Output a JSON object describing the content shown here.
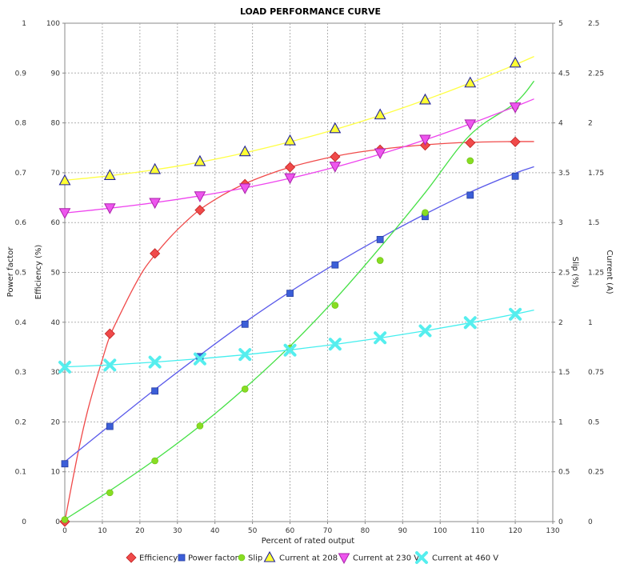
{
  "chart_data": {
    "type": "line",
    "title": "LOAD PERFORMANCE CURVE",
    "xlabel": "Percent of rated output",
    "xlim": [
      0,
      130
    ],
    "x_ticks": [
      0,
      10,
      20,
      30,
      40,
      50,
      60,
      70,
      80,
      90,
      100,
      110,
      120,
      130
    ],
    "grid": true,
    "legend_position": "bottom",
    "axes": {
      "power_factor": {
        "label": "Power factor",
        "side": "left-outer",
        "range": [
          0,
          1
        ],
        "ticks": [
          "0",
          "0.1",
          "0.2",
          "0.3",
          "0.4",
          "0.5",
          "0.6",
          "0.7",
          "0.8",
          "0.9",
          "1"
        ]
      },
      "efficiency": {
        "label": "Efficiency (%)",
        "side": "left-inner",
        "range": [
          0,
          100
        ],
        "ticks": [
          "0",
          "10",
          "20",
          "30",
          "40",
          "50",
          "60",
          "70",
          "80",
          "90",
          "100"
        ]
      },
      "slip": {
        "label": "Slip (%)",
        "side": "right-inner",
        "range": [
          0,
          5
        ],
        "ticks": [
          "0",
          "0.5",
          "1",
          "1.5",
          "2",
          "2.5",
          "3",
          "3.5",
          "4",
          "4.5",
          "5"
        ]
      },
      "current": {
        "label": "Current (A)",
        "side": "right-outer",
        "range": [
          0,
          2.5
        ],
        "ticks": [
          "0",
          "0.25",
          "0.5",
          "0.75",
          "1",
          "1.25",
          "1.5",
          "1.75",
          "2",
          "2.25",
          "2.5"
        ]
      }
    },
    "series": [
      {
        "name": "Efficiency",
        "axis": "efficiency",
        "color": "#f04a4a",
        "marker": "diamond",
        "marker_fill": "#f04a4a",
        "marker_stroke": "#c02020",
        "points": [
          [
            0,
            0
          ],
          [
            12,
            37.7
          ],
          [
            24,
            53.8
          ],
          [
            36,
            62.5
          ],
          [
            48,
            67.7
          ],
          [
            60,
            71.1
          ],
          [
            72,
            73.2
          ],
          [
            84,
            74.6
          ],
          [
            96,
            75.5
          ],
          [
            108,
            76
          ],
          [
            120,
            76.2
          ]
        ],
        "curve": [
          [
            0,
            0
          ],
          [
            2,
            8
          ],
          [
            4,
            15.5
          ],
          [
            6,
            22
          ],
          [
            8,
            27.5
          ],
          [
            10,
            32.5
          ],
          [
            12,
            37.2
          ],
          [
            15,
            42
          ],
          [
            18,
            46.5
          ],
          [
            21,
            50.5
          ],
          [
            24,
            53.5
          ],
          [
            28,
            57
          ],
          [
            32,
            60
          ],
          [
            36,
            62.6
          ],
          [
            42,
            65.5
          ],
          [
            48,
            67.8
          ],
          [
            54,
            69.6
          ],
          [
            60,
            71.1
          ],
          [
            66,
            72.3
          ],
          [
            72,
            73.3
          ],
          [
            78,
            74.1
          ],
          [
            84,
            74.7
          ],
          [
            90,
            75.2
          ],
          [
            96,
            75.6
          ],
          [
            102,
            75.9
          ],
          [
            108,
            76.1
          ],
          [
            114,
            76.2
          ],
          [
            120,
            76.25
          ],
          [
            125,
            76.25
          ]
        ]
      },
      {
        "name": "Power factor",
        "axis": "power_factor",
        "color": "#5a5aea",
        "marker": "square",
        "marker_fill": "#3b5ed8",
        "marker_stroke": "#2a40a0",
        "points": [
          [
            0,
            0.116
          ],
          [
            12,
            0.191
          ],
          [
            24,
            0.262
          ],
          [
            36,
            0.331
          ],
          [
            48,
            0.396
          ],
          [
            60,
            0.458
          ],
          [
            72,
            0.515
          ],
          [
            84,
            0.566
          ],
          [
            96,
            0.612
          ],
          [
            108,
            0.655
          ],
          [
            120,
            0.693
          ]
        ],
        "curve": [
          [
            0,
            0.12
          ],
          [
            12,
            0.193
          ],
          [
            24,
            0.265
          ],
          [
            36,
            0.334
          ],
          [
            48,
            0.4
          ],
          [
            60,
            0.461
          ],
          [
            72,
            0.517
          ],
          [
            84,
            0.569
          ],
          [
            96,
            0.617
          ],
          [
            108,
            0.661
          ],
          [
            120,
            0.699
          ],
          [
            125,
            0.712
          ]
        ]
      },
      {
        "name": "Slip",
        "axis": "slip",
        "color": "#44e044",
        "marker": "circle",
        "marker_fill": "#88dd22",
        "marker_stroke": "#66bb11",
        "points": [
          [
            0,
            0.02
          ],
          [
            12,
            0.29
          ],
          [
            24,
            0.61
          ],
          [
            36,
            0.96
          ],
          [
            48,
            1.33
          ],
          [
            60,
            1.74
          ],
          [
            72,
            2.17
          ],
          [
            84,
            2.62
          ],
          [
            96,
            3.1
          ],
          [
            108,
            3.62
          ],
          [
            120,
            4.16
          ]
        ],
        "curve": [
          [
            0,
            0.02
          ],
          [
            12,
            0.31
          ],
          [
            24,
            0.62
          ],
          [
            36,
            0.96
          ],
          [
            48,
            1.34
          ],
          [
            60,
            1.76
          ],
          [
            72,
            2.23
          ],
          [
            84,
            2.75
          ],
          [
            96,
            3.3
          ],
          [
            108,
            3.88
          ],
          [
            120,
            4.2
          ],
          [
            125,
            4.42
          ]
        ]
      },
      {
        "name": "Current at 208 V",
        "axis": "current",
        "color": "#ffff44",
        "marker": "triangle-up",
        "marker_fill": "#ffff33",
        "marker_stroke": "#22229a",
        "points": [
          [
            0,
            1.71
          ],
          [
            12,
            1.736
          ],
          [
            24,
            1.766
          ],
          [
            36,
            1.806
          ],
          [
            48,
            1.855
          ],
          [
            60,
            1.91
          ],
          [
            72,
            1.971
          ],
          [
            84,
            2.04
          ],
          [
            96,
            2.115
          ],
          [
            108,
            2.2
          ],
          [
            120,
            2.3
          ]
        ],
        "curve": [
          [
            0,
            1.712
          ],
          [
            12,
            1.735
          ],
          [
            24,
            1.765
          ],
          [
            36,
            1.803
          ],
          [
            48,
            1.85
          ],
          [
            60,
            1.905
          ],
          [
            72,
            1.967
          ],
          [
            84,
            2.037
          ],
          [
            96,
            2.115
          ],
          [
            108,
            2.2
          ],
          [
            120,
            2.292
          ],
          [
            125,
            2.333
          ]
        ]
      },
      {
        "name": "Current at 230 V",
        "axis": "current",
        "color": "#ee44ee",
        "marker": "triangle-down",
        "marker_fill": "#ee55ee",
        "marker_stroke": "#aa22aa",
        "points": [
          [
            0,
            1.55
          ],
          [
            12,
            1.574
          ],
          [
            24,
            1.601
          ],
          [
            36,
            1.634
          ],
          [
            48,
            1.674
          ],
          [
            60,
            1.725
          ],
          [
            72,
            1.783
          ],
          [
            84,
            1.85
          ],
          [
            96,
            1.918
          ],
          [
            108,
            1.995
          ],
          [
            120,
            2.08
          ]
        ],
        "curve": [
          [
            0,
            1.548
          ],
          [
            12,
            1.572
          ],
          [
            24,
            1.6
          ],
          [
            36,
            1.634
          ],
          [
            48,
            1.674
          ],
          [
            60,
            1.722
          ],
          [
            72,
            1.778
          ],
          [
            84,
            1.843
          ],
          [
            96,
            1.915
          ],
          [
            108,
            1.995
          ],
          [
            120,
            2.082
          ],
          [
            125,
            2.12
          ]
        ]
      },
      {
        "name": "Current at 460 V",
        "axis": "current",
        "color": "#44eeee",
        "marker": "x",
        "marker_fill": "#55eeee",
        "marker_stroke": "#33cccc",
        "points": [
          [
            0,
            0.775
          ],
          [
            12,
            0.785
          ],
          [
            24,
            0.8
          ],
          [
            36,
            0.816
          ],
          [
            48,
            0.838
          ],
          [
            60,
            0.86
          ],
          [
            72,
            0.89
          ],
          [
            84,
            0.922
          ],
          [
            96,
            0.957
          ],
          [
            108,
            0.998
          ],
          [
            120,
            1.04
          ]
        ],
        "curve": [
          [
            0,
            0.776
          ],
          [
            12,
            0.786
          ],
          [
            24,
            0.8
          ],
          [
            36,
            0.817
          ],
          [
            48,
            0.837
          ],
          [
            60,
            0.861
          ],
          [
            72,
            0.889
          ],
          [
            84,
            0.921
          ],
          [
            96,
            0.957
          ],
          [
            108,
            0.997
          ],
          [
            120,
            1.041
          ],
          [
            125,
            1.061
          ]
        ]
      }
    ]
  }
}
